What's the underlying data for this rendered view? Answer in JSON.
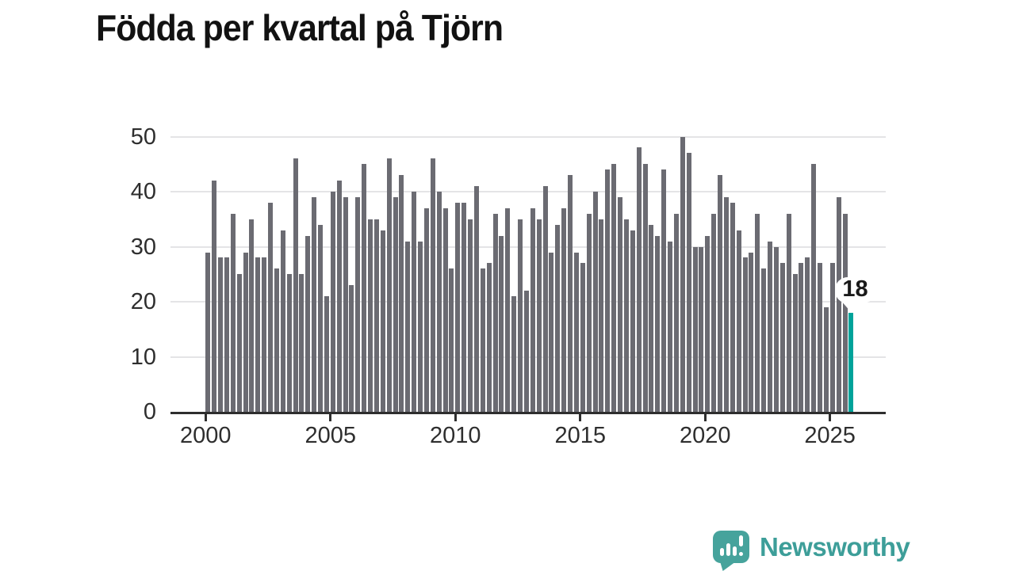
{
  "title": "Födda per kvartal på Tjörn",
  "annotation": {
    "last_value_label": "18"
  },
  "logo": {
    "text": "Newsworthy",
    "color": "#3d9e99"
  },
  "chart_data": {
    "type": "bar",
    "title": "Födda per kvartal på Tjörn",
    "x_start": "2000-Q1",
    "x_freq": "quarterly",
    "x_tick_labels": [
      "2000",
      "2005",
      "2010",
      "2015",
      "2020",
      "2025"
    ],
    "y_tick_labels": [
      "0",
      "10",
      "20",
      "30",
      "40",
      "50"
    ],
    "ylim": [
      0,
      52
    ],
    "grid": "horizontal",
    "legend": "none",
    "bar_color": "#6b6b72",
    "highlight_color": "#00a39a",
    "highlight_index": 103,
    "annotation": {
      "index": 103,
      "text": "18"
    },
    "values": [
      29,
      42,
      28,
      28,
      36,
      25,
      29,
      35,
      28,
      28,
      38,
      26,
      33,
      25,
      46,
      25,
      32,
      39,
      34,
      21,
      40,
      42,
      39,
      23,
      39,
      45,
      35,
      35,
      33,
      46,
      39,
      43,
      31,
      40,
      31,
      37,
      46,
      40,
      37,
      26,
      38,
      38,
      35,
      41,
      26,
      27,
      36,
      32,
      37,
      21,
      35,
      22,
      37,
      35,
      41,
      29,
      34,
      37,
      43,
      29,
      27,
      36,
      40,
      35,
      44,
      45,
      39,
      35,
      33,
      48,
      45,
      34,
      32,
      44,
      31,
      36,
      50,
      47,
      30,
      30,
      32,
      36,
      43,
      39,
      38,
      33,
      28,
      29,
      36,
      26,
      31,
      30,
      27,
      36,
      25,
      27,
      28,
      45,
      27,
      19,
      27,
      39,
      36,
      18
    ]
  }
}
